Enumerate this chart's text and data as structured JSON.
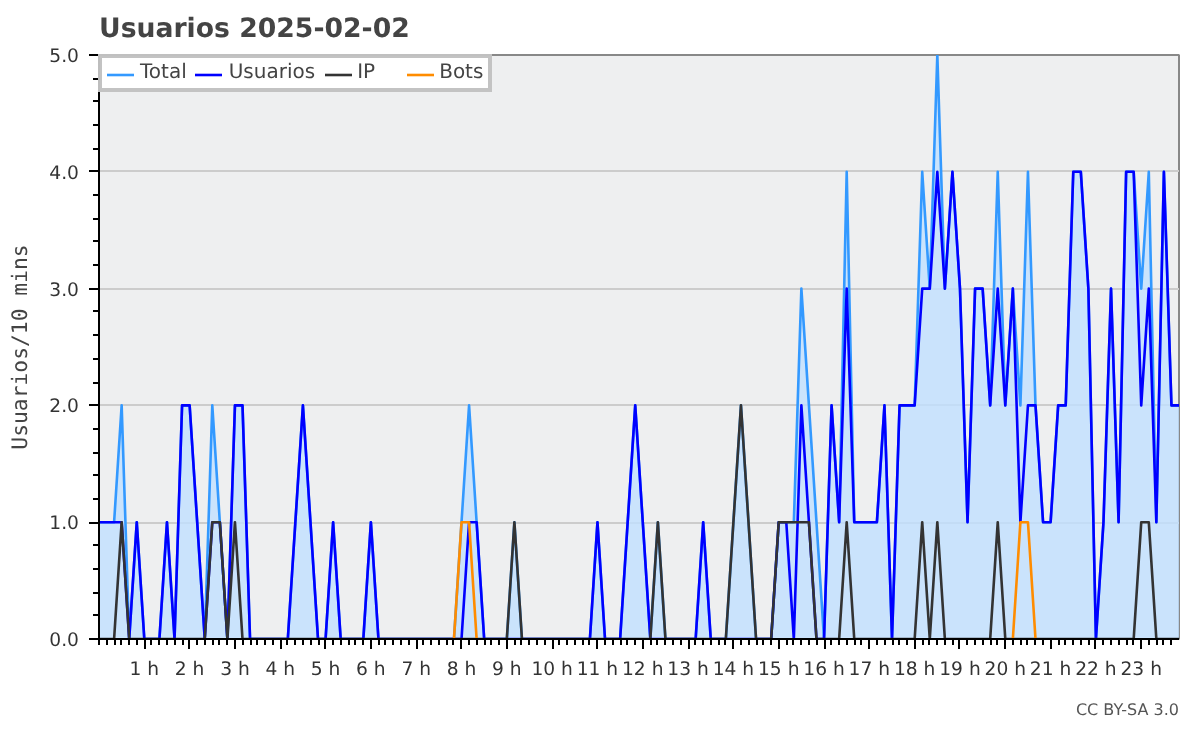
{
  "chart_data": {
    "type": "line",
    "title": "Usuarios  2025-02-02",
    "ylabel": "Usuarios/10 mins",
    "xlim": [
      0,
      23.8333
    ],
    "ylim": [
      0,
      5
    ],
    "xticks": [
      {
        "value": 1,
        "label": "1 h"
      },
      {
        "value": 2,
        "label": "2 h"
      },
      {
        "value": 3,
        "label": "3 h"
      },
      {
        "value": 4,
        "label": "4 h"
      },
      {
        "value": 5,
        "label": "5 h"
      },
      {
        "value": 6,
        "label": "6 h"
      },
      {
        "value": 7,
        "label": "7 h"
      },
      {
        "value": 8,
        "label": "8 h"
      },
      {
        "value": 9,
        "label": "9 h"
      },
      {
        "value": 10,
        "label": "10 h"
      },
      {
        "value": 11,
        "label": "11 h"
      },
      {
        "value": 12,
        "label": "12 h"
      },
      {
        "value": 13,
        "label": "13 h"
      },
      {
        "value": 14,
        "label": "14 h"
      },
      {
        "value": 15,
        "label": "15 h"
      },
      {
        "value": 16,
        "label": "16 h"
      },
      {
        "value": 17,
        "label": "17 h"
      },
      {
        "value": 18,
        "label": "18 h"
      },
      {
        "value": 19,
        "label": "19 h"
      },
      {
        "value": 20,
        "label": "20 h"
      },
      {
        "value": 21,
        "label": "21 h"
      },
      {
        "value": 22,
        "label": "22 h"
      },
      {
        "value": 23,
        "label": "23 h"
      }
    ],
    "yticks": [
      {
        "value": 0,
        "label": "0.0"
      },
      {
        "value": 1,
        "label": "1.0"
      },
      {
        "value": 2,
        "label": "2.0"
      },
      {
        "value": 3,
        "label": "3.0"
      },
      {
        "value": 4,
        "label": "4.0"
      },
      {
        "value": 5,
        "label": "5.0"
      }
    ],
    "grid": "y",
    "legend": "top left",
    "x": [
      0,
      0.1667,
      0.3333,
      0.5,
      0.6667,
      0.8333,
      1,
      1.1667,
      1.3333,
      1.5,
      1.6667,
      1.8333,
      2,
      2.1667,
      2.3333,
      2.5,
      2.6667,
      2.8333,
      3,
      3.1667,
      3.3333,
      3.5,
      3.6667,
      3.8333,
      4,
      4.1667,
      4.3333,
      4.5,
      4.6667,
      4.8333,
      5,
      5.1667,
      5.3333,
      5.5,
      5.6667,
      5.8333,
      6,
      6.1667,
      6.3333,
      6.5,
      6.6667,
      6.8333,
      7,
      7.1667,
      7.3333,
      7.5,
      7.6667,
      7.8333,
      8,
      8.1667,
      8.3333,
      8.5,
      8.6667,
      8.8333,
      9,
      9.1667,
      9.3333,
      9.5,
      9.6667,
      9.8333,
      10,
      10.1667,
      10.3333,
      10.5,
      10.6667,
      10.8333,
      11,
      11.1667,
      11.3333,
      11.5,
      11.6667,
      11.8333,
      12,
      12.1667,
      12.3333,
      12.5,
      12.6667,
      12.8333,
      13,
      13.1667,
      13.3333,
      13.5,
      13.6667,
      13.8333,
      14,
      14.1667,
      14.3333,
      14.5,
      14.6667,
      14.8333,
      15,
      15.1667,
      15.3333,
      15.5,
      15.6667,
      15.8333,
      16,
      16.1667,
      16.3333,
      16.5,
      16.6667,
      16.8333,
      17,
      17.1667,
      17.3333,
      17.5,
      17.6667,
      17.8333,
      18,
      18.1667,
      18.3333,
      18.5,
      18.6667,
      18.8333,
      19,
      19.1667,
      19.3333,
      19.5,
      19.6667,
      19.8333,
      20,
      20.1667,
      20.3333,
      20.5,
      20.6667,
      20.8333,
      21,
      21.1667,
      21.3333,
      21.5,
      21.6667,
      21.8333,
      22,
      22.1667,
      22.3333,
      22.5,
      22.6667,
      22.8333,
      23,
      23.1667,
      23.3333,
      23.5,
      23.6667,
      23.8333
    ],
    "annotations": [
      "CC BY-SA 3.0"
    ],
    "series": [
      {
        "name": "Total",
        "type": "area",
        "color": "#3399ff",
        "values": [
          1,
          1,
          1,
          2,
          0,
          1,
          0,
          0,
          0,
          1,
          0,
          2,
          2,
          1,
          0,
          2,
          1,
          0,
          2,
          2,
          0,
          0,
          0,
          0,
          0,
          0,
          1,
          2,
          1,
          0,
          0,
          1,
          0,
          0,
          0,
          0,
          1,
          0,
          0,
          0,
          0,
          0,
          0,
          0,
          0,
          0,
          0,
          0,
          1,
          2,
          1,
          0,
          0,
          0,
          0,
          1,
          0,
          0,
          0,
          0,
          0,
          0,
          0,
          0,
          0,
          0,
          1,
          0,
          0,
          0,
          1,
          2,
          1,
          0,
          1,
          0,
          0,
          0,
          0,
          0,
          1,
          0,
          0,
          0,
          1,
          2,
          1,
          0,
          0,
          0,
          1,
          1,
          1,
          3,
          2,
          1,
          0,
          2,
          1,
          4,
          1,
          1,
          1,
          1,
          2,
          0,
          2,
          2,
          2,
          4,
          3,
          5,
          3,
          4,
          3,
          1,
          3,
          3,
          2,
          4,
          2,
          3,
          2,
          4,
          2,
          1,
          1,
          2,
          2,
          4,
          4,
          3,
          0,
          1,
          3,
          1,
          4,
          4,
          3,
          4,
          1,
          4,
          2,
          2
        ]
      },
      {
        "name": "Usuarios",
        "color": "#0000ff",
        "values": [
          1,
          1,
          1,
          1,
          0,
          1,
          0,
          0,
          0,
          1,
          0,
          2,
          2,
          1,
          0,
          1,
          1,
          0,
          2,
          2,
          0,
          0,
          0,
          0,
          0,
          0,
          1,
          2,
          1,
          0,
          0,
          1,
          0,
          0,
          0,
          0,
          1,
          0,
          0,
          0,
          0,
          0,
          0,
          0,
          0,
          0,
          0,
          0,
          0,
          1,
          1,
          0,
          0,
          0,
          0,
          0,
          0,
          0,
          0,
          0,
          0,
          0,
          0,
          0,
          0,
          0,
          1,
          0,
          0,
          0,
          1,
          2,
          1,
          0,
          0,
          0,
          0,
          0,
          0,
          0,
          1,
          0,
          0,
          0,
          0,
          0,
          0,
          0,
          0,
          0,
          1,
          1,
          0,
          2,
          1,
          0,
          0,
          2,
          1,
          3,
          1,
          1,
          1,
          1,
          2,
          0,
          2,
          2,
          2,
          3,
          3,
          4,
          3,
          4,
          3,
          1,
          3,
          3,
          2,
          3,
          2,
          3,
          1,
          2,
          2,
          1,
          1,
          2,
          2,
          4,
          4,
          3,
          0,
          1,
          3,
          1,
          4,
          4,
          2,
          3,
          1,
          4,
          2,
          2
        ]
      },
      {
        "name": "IP",
        "color": "#333333",
        "values": [
          0,
          0,
          0,
          1,
          0,
          0,
          0,
          0,
          0,
          0,
          0,
          0,
          0,
          0,
          0,
          1,
          1,
          0,
          1,
          0,
          0,
          0,
          0,
          0,
          0,
          0,
          0,
          0,
          0,
          0,
          0,
          0,
          0,
          0,
          0,
          0,
          0,
          0,
          0,
          0,
          0,
          0,
          0,
          0,
          0,
          0,
          0,
          0,
          0,
          0,
          0,
          0,
          0,
          0,
          0,
          1,
          0,
          0,
          0,
          0,
          0,
          0,
          0,
          0,
          0,
          0,
          0,
          0,
          0,
          0,
          0,
          0,
          0,
          0,
          1,
          0,
          0,
          0,
          0,
          0,
          0,
          0,
          0,
          0,
          1,
          2,
          1,
          0,
          0,
          0,
          1,
          1,
          1,
          1,
          1,
          0,
          0,
          0,
          0,
          1,
          0,
          0,
          0,
          0,
          0,
          0,
          0,
          0,
          0,
          1,
          0,
          1,
          0,
          0,
          0,
          0,
          0,
          0,
          0,
          1,
          0,
          0,
          0,
          0,
          0,
          0,
          0,
          0,
          0,
          0,
          0,
          0,
          0,
          0,
          0,
          0,
          0,
          0,
          1,
          1,
          0,
          0,
          0,
          0
        ]
      },
      {
        "name": "Bots",
        "color": "#ff8c00",
        "values": [
          null,
          null,
          null,
          null,
          null,
          null,
          null,
          null,
          null,
          null,
          null,
          null,
          null,
          null,
          null,
          null,
          null,
          null,
          null,
          null,
          null,
          null,
          null,
          null,
          null,
          null,
          null,
          null,
          null,
          null,
          null,
          null,
          null,
          null,
          null,
          null,
          null,
          null,
          null,
          null,
          null,
          null,
          null,
          null,
          null,
          null,
          null,
          0,
          1,
          1,
          0,
          null,
          null,
          null,
          null,
          null,
          null,
          null,
          null,
          null,
          null,
          null,
          null,
          null,
          null,
          null,
          null,
          null,
          null,
          null,
          null,
          null,
          null,
          null,
          null,
          null,
          null,
          null,
          null,
          null,
          null,
          null,
          null,
          null,
          null,
          null,
          null,
          null,
          null,
          null,
          null,
          null,
          null,
          null,
          null,
          null,
          null,
          null,
          null,
          null,
          null,
          null,
          null,
          null,
          null,
          null,
          null,
          null,
          null,
          null,
          null,
          null,
          null,
          null,
          null,
          null,
          null,
          null,
          null,
          null,
          null,
          0,
          1,
          1,
          0,
          null,
          null,
          null,
          null,
          null,
          null,
          null,
          null,
          null,
          null,
          null,
          null,
          null,
          null,
          null,
          null,
          null,
          null,
          null
        ]
      }
    ]
  }
}
